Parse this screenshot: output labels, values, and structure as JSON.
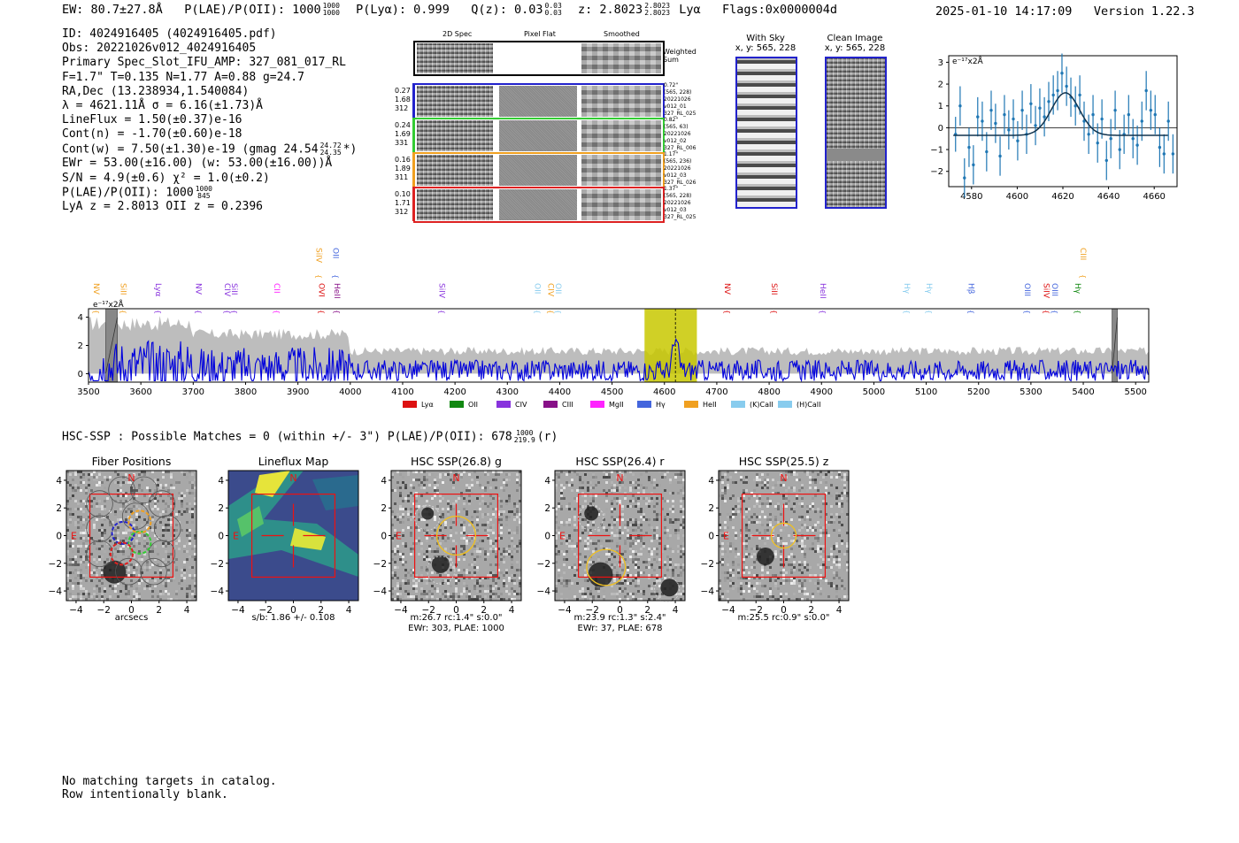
{
  "header": {
    "ew": "EW: 80.7±27.8Å",
    "plae_label": "P(LAE)/P(OII): 1000",
    "plae_hi": "1000",
    "plae_lo": "1000",
    "plya": "P(Lyα): 0.999",
    "qz_label": "Q(z): 0.03",
    "qz_hi": "0.03",
    "qz_lo": "0.03",
    "z_label": "z: 2.8023",
    "z_hi": "2.8023",
    "z_lo": "2.8023",
    "z_line": "Lyα",
    "flags": "Flags:0x0000004d",
    "datetime": "2025-01-10 14:17:09",
    "version": "Version 1.22.3"
  },
  "info": {
    "id": "ID: 4024916405 (4024916405.pdf)",
    "obs": "Obs: 20221026v012_4024916405",
    "slot": "Primary Spec_Slot_IFU_AMP: 327_081_017_RL",
    "params": "F=1.7\"  T=0.135  N=1.77  A=0.88  g=24.7",
    "radec": "RA,Dec (13.238934,1.540084)",
    "lambda": "λ = 4621.11Å   σ = 6.16(±1.73)Å",
    "lineflux": "LineFlux = 1.50(±0.37)e-16",
    "contn": "Cont(n) = -1.70(±0.60)e-18",
    "contw_a": "Cont(w) = 7.50(±1.30)e-19 (gmag 24.54",
    "contw_hi": "24.72",
    "contw_lo": "24.35",
    "contw_b": "*)",
    "ewr": "EWr = 53.00(±16.00) (w: 53.00(±16.00))Å",
    "sn": "S/N = 4.9(±0.6)  χ² = 1.0(±0.2)",
    "plae_a": "P(LAE)/P(OII): 1000",
    "plae_hi": "1000",
    "plae_lo": "845",
    "lyaz": "LyA z = 2.8013  OII z = 0.2396"
  },
  "cutouts2d": {
    "col_labels": [
      "2D Spec",
      "Pixel Flat",
      "Smoothed"
    ],
    "weighted_label": "Weighted Sum",
    "rows": [
      {
        "left": [
          "0.27",
          "1.68",
          "312"
        ],
        "right": [
          "0.72\"",
          "(565, 228)",
          "20221026",
          "v012_01",
          "327_RL_025"
        ],
        "color": "#2222cc"
      },
      {
        "left": [
          "0.24",
          "1.69",
          "331"
        ],
        "right": [
          "0.82\"",
          "(565, 63)",
          "20221026",
          "v012_02",
          "327_RL_006"
        ],
        "color": "#33cc33"
      },
      {
        "left": [
          "0.16",
          "1.89",
          "311"
        ],
        "right": [
          "1.17\"",
          "(565, 236)",
          "20221026",
          "v012_03",
          "327_RL_026"
        ],
        "color": "#f0a020"
      },
      {
        "left": [
          "0.10",
          "1.71",
          "312"
        ],
        "right": [
          "1.37\"",
          "(565, 228)",
          "20221026",
          "v012_03",
          "327_RL_025"
        ],
        "color": "#dd2222"
      }
    ]
  },
  "sky": {
    "with_sky_title": "With Sky",
    "with_sky_xy": "x, y: 565, 228",
    "clean_title": "Clean Image",
    "clean_xy": "x, y: 565, 228"
  },
  "colors": {
    "lya": "#dd1111",
    "oii": "#118811",
    "civ": "#8833dd",
    "ciii": "#881188",
    "mgii": "#ff22ff",
    "hgamma": "#4466dd",
    "heii": "#f0a020",
    "kcaii": "#88ccee",
    "hcaii": "#88ccee",
    "spectrum": "#0000dd",
    "zoom": "#1f77b4"
  },
  "chart_data": [
    {
      "type": "scatter",
      "name": "zoom-line-fit",
      "ylabel_unit": "e⁻¹⁷x2Å",
      "xlim": [
        4570,
        4670
      ],
      "ylim": [
        -2.7,
        3.3
      ],
      "xticks": [
        4580,
        4600,
        4620,
        4640,
        4660
      ],
      "yticks": [
        -2,
        -1,
        0,
        1,
        2,
        3
      ],
      "points": [
        [
          4573.0,
          -0.3,
          0.8
        ],
        [
          4575.0,
          1.0,
          0.9
        ],
        [
          4576.9,
          -2.3,
          0.9
        ],
        [
          4578.9,
          -0.9,
          0.9
        ],
        [
          4580.8,
          -1.7,
          0.9
        ],
        [
          4582.7,
          0.5,
          0.9
        ],
        [
          4584.7,
          0.3,
          0.9
        ],
        [
          4586.6,
          -1.1,
          0.9
        ],
        [
          4588.6,
          0.8,
          0.9
        ],
        [
          4590.5,
          0.2,
          0.9
        ],
        [
          4592.5,
          -1.3,
          0.9
        ],
        [
          4594.4,
          0.6,
          0.9
        ],
        [
          4596.3,
          -0.1,
          0.9
        ],
        [
          4598.3,
          0.4,
          0.9
        ],
        [
          4600.2,
          -0.6,
          0.9
        ],
        [
          4602.2,
          0.8,
          0.9
        ],
        [
          4604.1,
          -0.3,
          0.9
        ],
        [
          4606.0,
          1.1,
          0.9
        ],
        [
          4608.0,
          0.1,
          0.9
        ],
        [
          4609.9,
          0.9,
          0.9
        ],
        [
          4611.9,
          0.5,
          0.9
        ],
        [
          4613.8,
          1.2,
          0.9
        ],
        [
          4615.8,
          1.5,
          0.9
        ],
        [
          4617.7,
          1.7,
          0.9
        ],
        [
          4619.6,
          2.5,
          0.9
        ],
        [
          4621.6,
          1.9,
          0.9
        ],
        [
          4623.5,
          1.4,
          0.9
        ],
        [
          4625.5,
          1.0,
          0.9
        ],
        [
          4627.4,
          1.5,
          0.9
        ],
        [
          4629.3,
          0.3,
          0.9
        ],
        [
          4631.3,
          -0.3,
          0.9
        ],
        [
          4633.2,
          0.6,
          0.9
        ],
        [
          4635.2,
          -0.7,
          0.9
        ],
        [
          4637.1,
          0.4,
          0.9
        ],
        [
          4639.1,
          -1.5,
          0.9
        ],
        [
          4641.0,
          -0.5,
          0.9
        ],
        [
          4642.9,
          0.8,
          0.9
        ],
        [
          4644.9,
          -1.0,
          0.9
        ],
        [
          4646.8,
          -0.3,
          0.9
        ],
        [
          4648.8,
          0.6,
          0.9
        ],
        [
          4650.7,
          -0.5,
          0.9
        ],
        [
          4652.6,
          -0.8,
          0.9
        ],
        [
          4654.6,
          0.3,
          0.9
        ],
        [
          4656.5,
          1.7,
          0.9
        ],
        [
          4658.5,
          0.8,
          0.9
        ],
        [
          4660.4,
          0.6,
          0.9
        ],
        [
          4662.4,
          -0.9,
          0.9
        ],
        [
          4664.3,
          -1.2,
          0.9
        ],
        [
          4666.2,
          0.3,
          0.9
        ],
        [
          4668.2,
          -1.2,
          0.9
        ]
      ],
      "fit": {
        "baseline": -0.35,
        "amplitude": 1.95,
        "center": 4621.1,
        "sigma": 6.16,
        "x_range": [
          4572,
          4666
        ]
      }
    },
    {
      "type": "line",
      "name": "full-spectrum",
      "ylabel_unit": "e⁻¹⁷x2Å",
      "xlim": [
        3500,
        5525
      ],
      "ylim": [
        -0.6,
        4.6
      ],
      "xticks": [
        3500,
        3600,
        3700,
        3800,
        3900,
        4000,
        4100,
        4200,
        4300,
        4400,
        4500,
        4600,
        4700,
        4800,
        4900,
        5000,
        5100,
        5200,
        5300,
        5400,
        5500
      ],
      "yticks": [
        0,
        2,
        4
      ],
      "highlight_band": [
        4562,
        4662
      ],
      "highlight_color": "#c8c800",
      "line_center": 4621,
      "masked_regions": [
        [
          3533,
          3555
        ],
        [
          5455,
          5465
        ]
      ],
      "line_markers": [
        {
          "label": "NV",
          "x": 3505,
          "row": 1,
          "color": "#f0a020"
        },
        {
          "label": "SiII",
          "x": 3557,
          "row": 1,
          "color": "#f0a020"
        },
        {
          "label": "Lyα",
          "x": 3623,
          "row": 1,
          "color": "#8833dd"
        },
        {
          "label": "NV",
          "x": 3700,
          "row": 1,
          "color": "#8833dd"
        },
        {
          "label": "CIV",
          "x": 3755,
          "row": 1,
          "color": "#8833dd"
        },
        {
          "label": "SiII",
          "x": 3769,
          "row": 1,
          "color": "#8833dd"
        },
        {
          "label": "CII",
          "x": 3850,
          "row": 1,
          "color": "#ff22ff"
        },
        {
          "label": "OVI",
          "x": 3935,
          "row": 1,
          "color": "#dd1111"
        },
        {
          "label": "HeII",
          "x": 3965,
          "row": 1,
          "color": "#881188"
        },
        {
          "label": "SiIV",
          "x": 3930,
          "row": 0,
          "color": "#f0a020"
        },
        {
          "label": "OII",
          "x": 3962,
          "row": 0,
          "color": "#4466dd"
        },
        {
          "label": "SiIV",
          "x": 4165,
          "row": 1,
          "color": "#8833dd"
        },
        {
          "label": "OII",
          "x": 4348,
          "row": 1,
          "color": "#88ccee"
        },
        {
          "label": "CIV",
          "x": 4373,
          "row": 1,
          "color": "#f0a020"
        },
        {
          "label": "OII",
          "x": 4387,
          "row": 1,
          "color": "#88ccee"
        },
        {
          "label": "NV",
          "x": 4710,
          "row": 1,
          "color": "#dd1111"
        },
        {
          "label": "SiII",
          "x": 4800,
          "row": 1,
          "color": "#dd1111"
        },
        {
          "label": "HeII",
          "x": 4893,
          "row": 1,
          "color": "#8833dd"
        },
        {
          "label": "Hγ",
          "x": 5053,
          "row": 1,
          "color": "#88ccee"
        },
        {
          "label": "Hγ",
          "x": 5096,
          "row": 1,
          "color": "#88ccee"
        },
        {
          "label": "Hβ",
          "x": 5176,
          "row": 1,
          "color": "#4466dd"
        },
        {
          "label": "OIII",
          "x": 5283,
          "row": 1,
          "color": "#4466dd"
        },
        {
          "label": "SiIV",
          "x": 5320,
          "row": 1,
          "color": "#dd1111"
        },
        {
          "label": "OIII",
          "x": 5336,
          "row": 1,
          "color": "#4466dd"
        },
        {
          "label": "Hγ",
          "x": 5380,
          "row": 1,
          "color": "#118811"
        },
        {
          "label": "CIII",
          "x": 5390,
          "row": 0,
          "color": "#f0a020"
        }
      ],
      "legend": [
        {
          "label": "Lyα",
          "color": "#dd1111"
        },
        {
          "label": "OII",
          "color": "#118811"
        },
        {
          "label": "CIV",
          "color": "#8833dd"
        },
        {
          "label": "CIII",
          "color": "#881188"
        },
        {
          "label": "MgII",
          "color": "#ff22ff"
        },
        {
          "label": "Hγ",
          "color": "#4466dd"
        },
        {
          "label": "HeII",
          "color": "#f0a020"
        },
        {
          "label": "(K)CaII",
          "color": "#88ccee"
        },
        {
          "label": "(H)CaII",
          "color": "#88ccee"
        }
      ]
    }
  ],
  "hsc": {
    "summary_a": "HSC-SSP : Possible Matches = 0 (within +/- 3\")  P(LAE)/P(OII): 678",
    "summary_hi": "1000",
    "summary_lo": "219.9",
    "summary_b": "(r)",
    "panels": [
      {
        "title": "Fiber Positions",
        "caption1": "arcsecs",
        "caption2": ""
      },
      {
        "title": "Lineflux Map",
        "caption1": "s/b: 1.86 +/- 0.108",
        "caption2": ""
      },
      {
        "title": "HSC SSP(26.8) g",
        "caption1": "m:26.7 rc:1.4\"  s:0.0\"",
        "caption2": "EWr: 303, PLAE: 1000"
      },
      {
        "title": "HSC SSP(26.4) r",
        "caption1": "m:23.9  rc:1.3\"  s:2.4\"",
        "caption2": "EWr: 37, PLAE: 678"
      },
      {
        "title": "HSC SSP(25.5) z",
        "caption1": "m:25.5 rc:0.9\"  s:0.0\"",
        "caption2": ""
      }
    ],
    "axis_ticks": [
      "−4",
      "−2",
      "0",
      "2",
      "4"
    ],
    "north_label": "N",
    "east_label": "E"
  },
  "footer": {
    "line1": "No matching targets in catalog.",
    "line2": "Row intentionally blank."
  }
}
